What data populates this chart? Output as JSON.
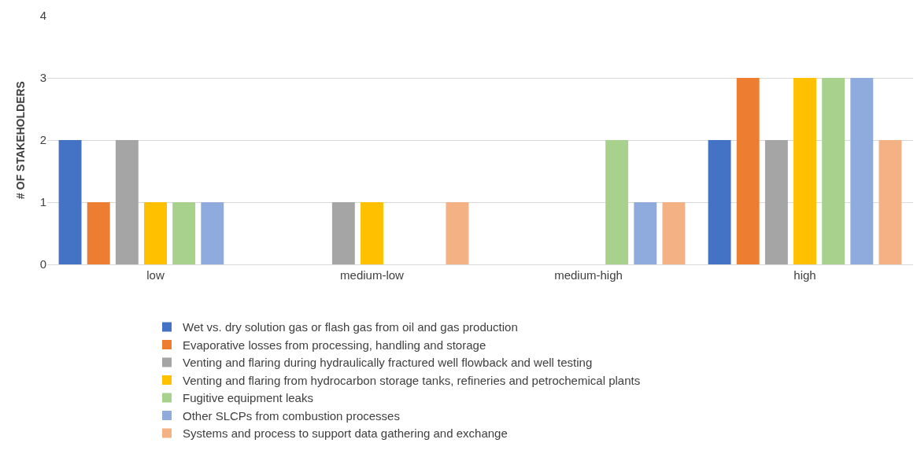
{
  "chart_data": {
    "type": "bar",
    "ylabel": "# OF STAKEHOLDERS",
    "categories": [
      "low",
      "medium-low",
      "medium-high",
      "high"
    ],
    "series": [
      {
        "name": "Wet vs. dry solution gas or flash gas from oil and gas production",
        "color": "#4472c4",
        "values": [
          2,
          0,
          0,
          2
        ]
      },
      {
        "name": "Evaporative losses from processing, handling and storage",
        "color": "#ed7d31",
        "values": [
          1,
          0,
          0,
          3
        ]
      },
      {
        "name": "Venting and flaring during hydraulically fractured well flowback and well testing",
        "color": "#a5a5a5",
        "values": [
          2,
          1,
          0,
          2
        ]
      },
      {
        "name": "Venting and flaring from hydrocarbon storage tanks, refineries and petrochemical plants",
        "color": "#ffc000",
        "values": [
          1,
          1,
          0,
          3
        ]
      },
      {
        "name": "Fugitive equipment leaks",
        "color": "#a9d18e",
        "values": [
          1,
          0,
          2,
          3
        ]
      },
      {
        "name": "Other SLCPs from combustion processes",
        "color": "#8faadc",
        "values": [
          1,
          0,
          1,
          3
        ]
      },
      {
        "name": "Systems and process to support data gathering and exchange",
        "color": "#f4b183",
        "values": [
          0,
          1,
          1,
          2
        ]
      }
    ],
    "ylim": [
      0,
      4
    ],
    "yticks": [
      0,
      1,
      2,
      3,
      4
    ],
    "grid": "y",
    "legend": "bottom"
  }
}
